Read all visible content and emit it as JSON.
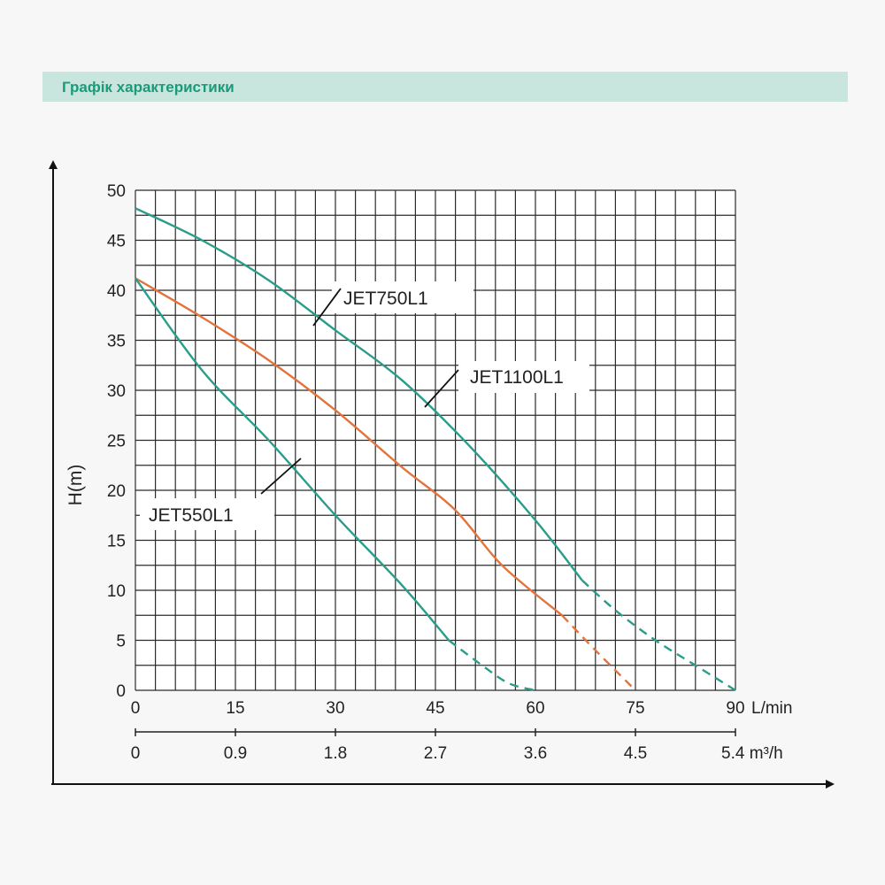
{
  "header": {
    "title": "Графік характеристики"
  },
  "chart_data": {
    "type": "line",
    "ylabel": "H(m)",
    "xlim": [
      0,
      90
    ],
    "ylim": [
      0,
      50
    ],
    "grid": true,
    "x_ticks": [
      "0",
      "15",
      "30",
      "45",
      "60",
      "75",
      "90"
    ],
    "x_unit": "L/min",
    "y_ticks": [
      "0",
      "5",
      "10",
      "15",
      "20",
      "25",
      "30",
      "35",
      "40",
      "45",
      "50"
    ],
    "x2_ticks": [
      "0",
      "0.9",
      "1.8",
      "2.7",
      "3.6",
      "4.5",
      "5.4"
    ],
    "x2_unit": "m³/h",
    "series": [
      {
        "name": "JET750L1",
        "color": "#2a9d8a",
        "solid": [
          [
            0,
            48.2
          ],
          [
            10,
            45
          ],
          [
            20,
            41
          ],
          [
            30,
            36
          ],
          [
            40,
            31
          ],
          [
            50,
            24.5
          ],
          [
            60,
            17
          ],
          [
            67,
            11
          ]
        ],
        "dashed": [
          [
            67,
            11
          ],
          [
            72,
            8
          ],
          [
            78,
            5
          ],
          [
            84,
            2.5
          ],
          [
            90,
            0
          ]
        ]
      },
      {
        "name": "JET1100L1",
        "color": "#e2733c",
        "solid": [
          [
            0,
            41.2
          ],
          [
            10,
            37.3
          ],
          [
            20,
            33
          ],
          [
            30,
            28
          ],
          [
            40,
            22.3
          ],
          [
            48,
            18
          ],
          [
            55,
            12.5
          ],
          [
            64,
            7.5
          ]
        ],
        "dashed": [
          [
            64,
            7.5
          ],
          [
            69,
            4
          ],
          [
            75,
            0
          ]
        ]
      },
      {
        "name": "JET550L1",
        "color": "#2a9d8a",
        "solid": [
          [
            0,
            41.2
          ],
          [
            10,
            32
          ],
          [
            20,
            25
          ],
          [
            30,
            17.5
          ],
          [
            40,
            10.5
          ],
          [
            47,
            5
          ]
        ],
        "dashed": [
          [
            47,
            5
          ],
          [
            52,
            2.5
          ],
          [
            56,
            0.7
          ],
          [
            60,
            0
          ]
        ]
      }
    ]
  }
}
